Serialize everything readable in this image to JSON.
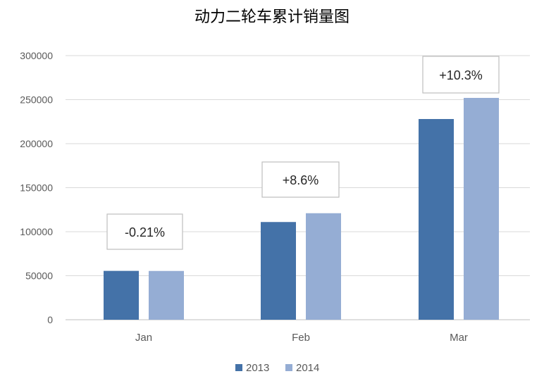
{
  "chart_data": {
    "type": "bar",
    "title": "动力二轮车累计销量图",
    "xlabel": "",
    "ylabel": "",
    "categories": [
      "Jan",
      "Feb",
      "Mar"
    ],
    "series": [
      {
        "name": "2013",
        "color": "#4472a8",
        "values": [
          55500,
          111000,
          228000
        ]
      },
      {
        "name": "2014",
        "color": "#95add4",
        "values": [
          55400,
          121000,
          252000
        ]
      }
    ],
    "ylim": [
      0,
      300000
    ],
    "yticks": [
      "300000",
      "250000",
      "200000",
      "150000",
      "100000",
      "50000",
      "0"
    ],
    "ytick_values": [
      300000,
      250000,
      200000,
      150000,
      100000,
      50000,
      0
    ],
    "annotations": [
      "-0.21%",
      "+8.6%",
      "+10.3%"
    ],
    "grid": true,
    "legend_position": "bottom"
  }
}
